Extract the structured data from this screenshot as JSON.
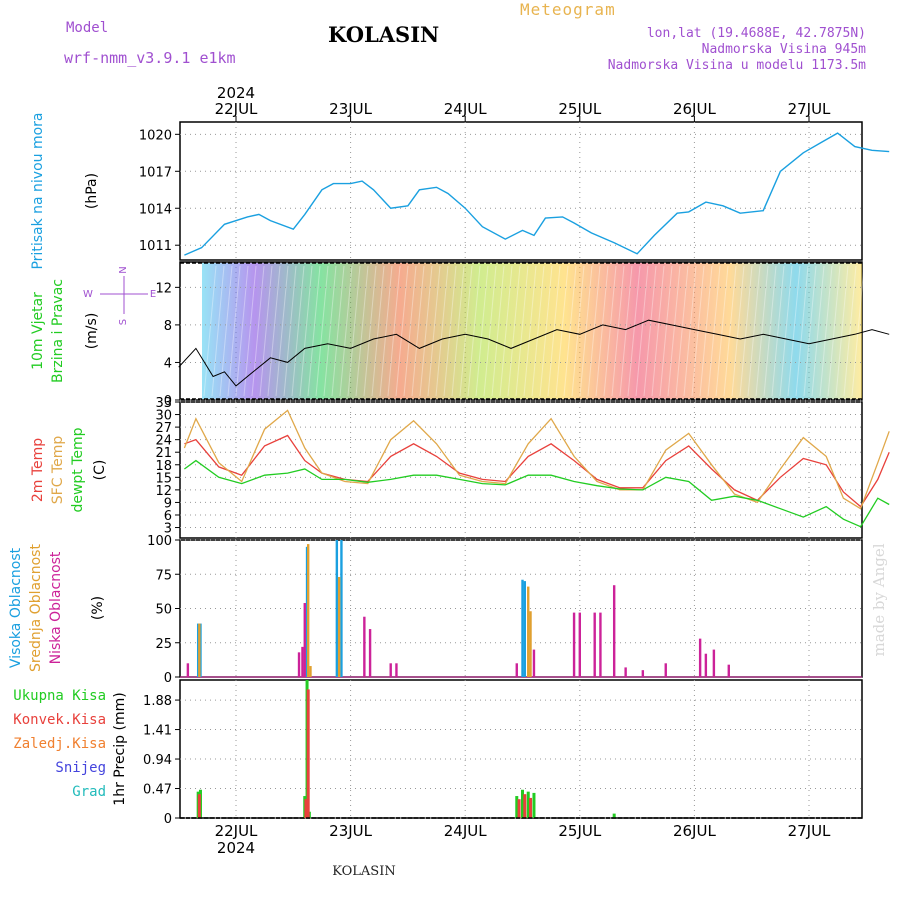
{
  "header": {
    "model_label": "Model",
    "model_name": "wrf-nmm_v3.9.1 e1km",
    "station": "KOLASIN",
    "product": "Meteogram",
    "lonlat": "lon,lat (19.4688E, 42.7875N)",
    "altitude": "Nadmorska Visina 945m",
    "model_altitude": "Nadmorska Visina u modelu 1173.5m"
  },
  "time_axis": {
    "year": "2024",
    "day_labels": [
      "22JUL",
      "23JUL",
      "24JUL",
      "25JUL",
      "26JUL",
      "27JUL"
    ]
  },
  "footer": {
    "station": "KOLASIN",
    "credit": "made by Angel"
  },
  "colors": {
    "pressure": "#1aa0e0",
    "temp2m": "#e8413c",
    "sfc_temp": "#e0a84a",
    "dewpt": "#22cc22",
    "high_cloud": "#1aa0e0",
    "mid_cloud": "#e0a030",
    "low_cloud": "#cc2299",
    "total_precip": "#22cc22",
    "conv_precip": "#e8413c",
    "frozen_precip": "#f08030",
    "snow": "#4444dd",
    "hail": "#22bbbb"
  },
  "chart_data": [
    {
      "type": "line",
      "panel": "pressure",
      "ylabel_lines": [
        "Pritisak na nivou mora"
      ],
      "unit": "(hPa)",
      "yticks": [
        1011,
        1014,
        1017,
        1020
      ],
      "ylim": [
        1009.8,
        1021
      ],
      "x_days": [
        -0.45,
        -0.3,
        -0.1,
        0.1,
        0.2,
        0.3,
        0.5,
        0.6,
        0.75,
        0.85,
        1.0,
        1.1,
        1.2,
        1.35,
        1.5,
        1.6,
        1.75,
        1.85,
        2.0,
        2.15,
        2.35,
        2.5,
        2.6,
        2.7,
        2.85,
        2.95,
        3.1,
        3.3,
        3.5,
        3.65,
        3.85,
        3.95,
        4.1,
        4.25,
        4.4,
        4.6,
        4.75,
        4.95,
        5.1,
        5.25,
        5.4,
        5.55,
        5.7
      ],
      "values": [
        1010.2,
        1010.8,
        1012.7,
        1013.3,
        1013.5,
        1013.0,
        1012.3,
        1013.5,
        1015.5,
        1016.0,
        1016.0,
        1016.2,
        1015.5,
        1014.0,
        1014.2,
        1015.5,
        1015.7,
        1015.2,
        1014.0,
        1012.5,
        1011.5,
        1012.2,
        1011.8,
        1013.2,
        1013.3,
        1012.8,
        1012.0,
        1011.2,
        1010.3,
        1011.8,
        1013.6,
        1013.7,
        1014.5,
        1014.2,
        1013.6,
        1013.8,
        1017.0,
        1018.5,
        1019.3,
        1020.1,
        1019.0,
        1018.7,
        1018.6
      ],
      "series": [
        {
          "name": "",
          "color_key": "pressure"
        }
      ]
    },
    {
      "type": "line",
      "panel": "wind",
      "ylabel_lines": [
        "10m Vjetar",
        "Brzina i Pravac"
      ],
      "unit": "(m/s)",
      "compass_labels": [
        "N",
        "W",
        "E",
        "S"
      ],
      "yticks": [
        0,
        4,
        8,
        12
      ],
      "ylim": [
        0,
        14.7
      ],
      "x_days": [
        -0.5,
        -0.35,
        -0.2,
        -0.1,
        0.0,
        0.15,
        0.3,
        0.45,
        0.6,
        0.8,
        1.0,
        1.2,
        1.4,
        1.6,
        1.8,
        2.0,
        2.2,
        2.4,
        2.6,
        2.8,
        3.0,
        3.2,
        3.4,
        3.6,
        3.8,
        4.0,
        4.2,
        4.4,
        4.6,
        4.8,
        5.0,
        5.2,
        5.4,
        5.55,
        5.7
      ],
      "values": [
        3.5,
        5.5,
        2.5,
        3.0,
        1.5,
        3.0,
        4.5,
        4.0,
        5.5,
        6.0,
        5.5,
        6.5,
        7.0,
        5.5,
        6.5,
        7.0,
        6.5,
        5.5,
        6.5,
        7.5,
        7.0,
        8.0,
        7.5,
        8.5,
        8.0,
        7.5,
        7.0,
        6.5,
        7.0,
        6.5,
        6.0,
        6.5,
        7.0,
        7.5,
        7.0
      ],
      "series": [
        {
          "name": "",
          "color": "#000000"
        }
      ]
    },
    {
      "type": "line",
      "panel": "temperature",
      "ylabel_lines": [
        "2m Temp",
        "SFC Temp",
        "dewpt Temp"
      ],
      "unit": "(C)",
      "yticks": [
        3,
        6,
        9,
        12,
        15,
        18,
        21,
        24,
        27,
        30,
        33
      ],
      "ylim": [
        0.5,
        33
      ],
      "x_days": [
        -0.45,
        -0.35,
        -0.15,
        0.05,
        0.25,
        0.45,
        0.6,
        0.75,
        0.95,
        1.15,
        1.35,
        1.55,
        1.75,
        1.95,
        2.15,
        2.35,
        2.55,
        2.75,
        2.95,
        3.15,
        3.35,
        3.55,
        3.75,
        3.95,
        4.15,
        4.35,
        4.55,
        4.75,
        4.95,
        5.15,
        5.3,
        5.45,
        5.6,
        5.7
      ],
      "series": [
        {
          "name": "2m Temp",
          "color_key": "temp2m",
          "values": [
            23,
            24,
            17.5,
            15.5,
            22.5,
            25,
            19,
            16,
            14.5,
            14,
            20,
            23,
            20,
            16,
            14.5,
            14,
            20,
            23,
            19,
            14.5,
            12.5,
            12.5,
            19,
            22.5,
            17,
            12,
            9.5,
            15,
            19.5,
            18,
            11.5,
            8,
            14.5,
            21
          ]
        },
        {
          "name": "SFC Temp",
          "color_key": "sfc_temp",
          "values": [
            22,
            29,
            18.5,
            14,
            26.5,
            31,
            22,
            16,
            14,
            13.5,
            24,
            28.5,
            23,
            15.5,
            14,
            13.5,
            23,
            29,
            20,
            14,
            12,
            12,
            21.5,
            25.5,
            18,
            11,
            9,
            17,
            24.5,
            20,
            10,
            7.5,
            18.5,
            26
          ]
        },
        {
          "name": "dewpt Temp",
          "color_key": "dewpt",
          "values": [
            17,
            19,
            15,
            13.5,
            15.5,
            16,
            17,
            14.5,
            14.5,
            13.8,
            14.5,
            15.5,
            15.5,
            14.5,
            13.5,
            13.2,
            15.5,
            15.5,
            14,
            13,
            12.2,
            12,
            15,
            14,
            9.5,
            10.5,
            9.5,
            7.5,
            5.5,
            8,
            5,
            3.2,
            10,
            8.5
          ]
        }
      ]
    },
    {
      "type": "bar",
      "panel": "cloud",
      "ylabel_lines": [
        "Visoka Oblacnost",
        "Srednja Oblacnost",
        "Niska Oblacnost"
      ],
      "unit": "(%)",
      "yticks": [
        0,
        25,
        50,
        75,
        100
      ],
      "ylim": [
        0,
        100
      ],
      "series": [
        {
          "name": "Visoka Oblacnost",
          "color_key": "high_cloud",
          "x_days": [
            -0.33,
            -0.31,
            0.62,
            0.88,
            0.92,
            2.5,
            2.52
          ],
          "values": [
            39,
            39,
            95,
            100,
            100,
            71,
            70
          ]
        },
        {
          "name": "Srednja Oblacnost",
          "color_key": "mid_cloud",
          "x_days": [
            -0.32,
            0.63,
            0.65,
            0.9,
            2.55,
            2.57
          ],
          "values": [
            39,
            97,
            8,
            73,
            66,
            48
          ]
        },
        {
          "name": "Niska Oblacnost",
          "color_key": "low_cloud",
          "x_days": [
            -0.42,
            0.55,
            0.58,
            0.6,
            1.12,
            1.17,
            1.35,
            1.4,
            2.45,
            2.6,
            2.95,
            3.0,
            3.13,
            3.18,
            3.3,
            3.4,
            3.55,
            3.75,
            4.05,
            4.1,
            4.17,
            4.3
          ],
          "values": [
            10,
            18,
            22,
            54,
            44,
            35,
            10,
            10,
            10,
            20,
            47,
            47,
            47,
            47,
            67,
            7,
            5,
            10,
            28,
            17,
            20,
            9
          ]
        }
      ]
    },
    {
      "type": "bar",
      "panel": "precip",
      "ylabel_lines": [
        "1hr Precip"
      ],
      "unit": "(mm)",
      "legend_labels": [
        "Ukupna Kisa",
        "Konvek.Kisa",
        "Zaledj.Kisa",
        "Snijeg",
        "Grad"
      ],
      "yticks": [
        0,
        0.47,
        0.94,
        1.41,
        1.88
      ],
      "ylim": [
        0,
        2.2
      ],
      "series": [
        {
          "name": "Ukupna Kisa",
          "color_key": "total_precip",
          "x_days": [
            -0.33,
            -0.31,
            0.6,
            0.62,
            0.64,
            2.45,
            2.5,
            2.55,
            2.6,
            3.3
          ],
          "values": [
            0.42,
            0.45,
            0.35,
            2.2,
            0.1,
            0.35,
            0.45,
            0.42,
            0.4,
            0.07
          ]
        },
        {
          "name": "Konvek.Kisa",
          "color_key": "conv_precip",
          "x_days": [
            -0.32,
            0.61,
            0.63,
            2.47,
            2.52,
            2.57
          ],
          "values": [
            0.38,
            0.3,
            2.05,
            0.3,
            0.38,
            0.32
          ]
        }
      ]
    }
  ]
}
